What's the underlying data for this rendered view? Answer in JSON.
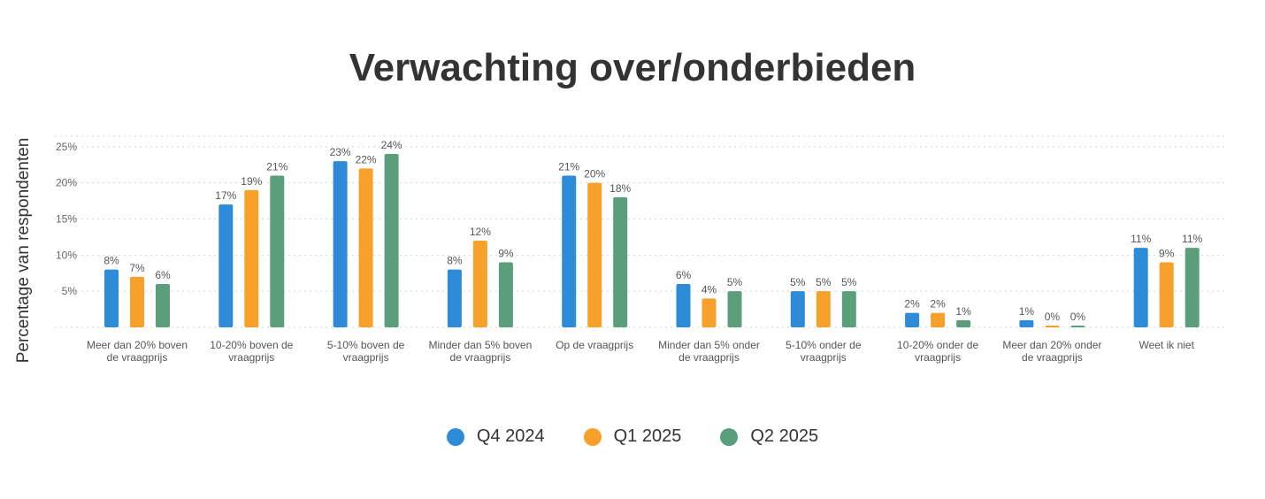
{
  "chart_data": {
    "type": "bar",
    "title": "Verwachting over/onderbieden",
    "xlabel": "",
    "ylabel": "Percentage van respondenten",
    "ylim": [
      0,
      25
    ],
    "yticks": [
      5,
      10,
      15,
      20,
      25
    ],
    "ytick_labels": [
      "5%",
      "10%",
      "15%",
      "20%",
      "25%"
    ],
    "grid": true,
    "legend_position": "bottom",
    "categories": [
      [
        "Meer dan 20% boven",
        "de vraagprijs"
      ],
      [
        "10-20% boven de",
        "vraagprijs"
      ],
      [
        "5-10% boven de",
        "vraagprijs"
      ],
      [
        "Minder dan 5% boven",
        "de vraagprijs"
      ],
      [
        "Op de vraagprijs"
      ],
      [
        "Minder dan 5% onder",
        "de vraagprijs"
      ],
      [
        "5-10% onder de",
        "vraagprijs"
      ],
      [
        "10-20% onder de",
        "vraagprijs"
      ],
      [
        "Meer dan 20% onder",
        "de vraagprijs"
      ],
      [
        "Weet ik niet"
      ]
    ],
    "series": [
      {
        "name": "Q4 2024",
        "color": "#2e8bd8",
        "values": [
          8,
          17,
          23,
          8,
          21,
          6,
          5,
          2,
          1,
          11
        ],
        "labels": [
          "8%",
          "17%",
          "23%",
          "8%",
          "21%",
          "6%",
          "5%",
          "2%",
          "1%",
          "11%"
        ]
      },
      {
        "name": "Q1 2025",
        "color": "#f7a12b",
        "values": [
          7,
          19,
          22,
          12,
          20,
          4,
          5,
          2,
          0,
          9
        ],
        "labels": [
          "7%",
          "19%",
          "22%",
          "12%",
          "20%",
          "4%",
          "5%",
          "2%",
          "0%",
          "9%"
        ]
      },
      {
        "name": "Q2 2025",
        "color": "#5a9e7c",
        "values": [
          6,
          21,
          24,
          9,
          18,
          5,
          5,
          1,
          0,
          11
        ],
        "labels": [
          "6%",
          "21%",
          "24%",
          "9%",
          "18%",
          "5%",
          "5%",
          "1%",
          "0%",
          "11%"
        ]
      }
    ]
  }
}
